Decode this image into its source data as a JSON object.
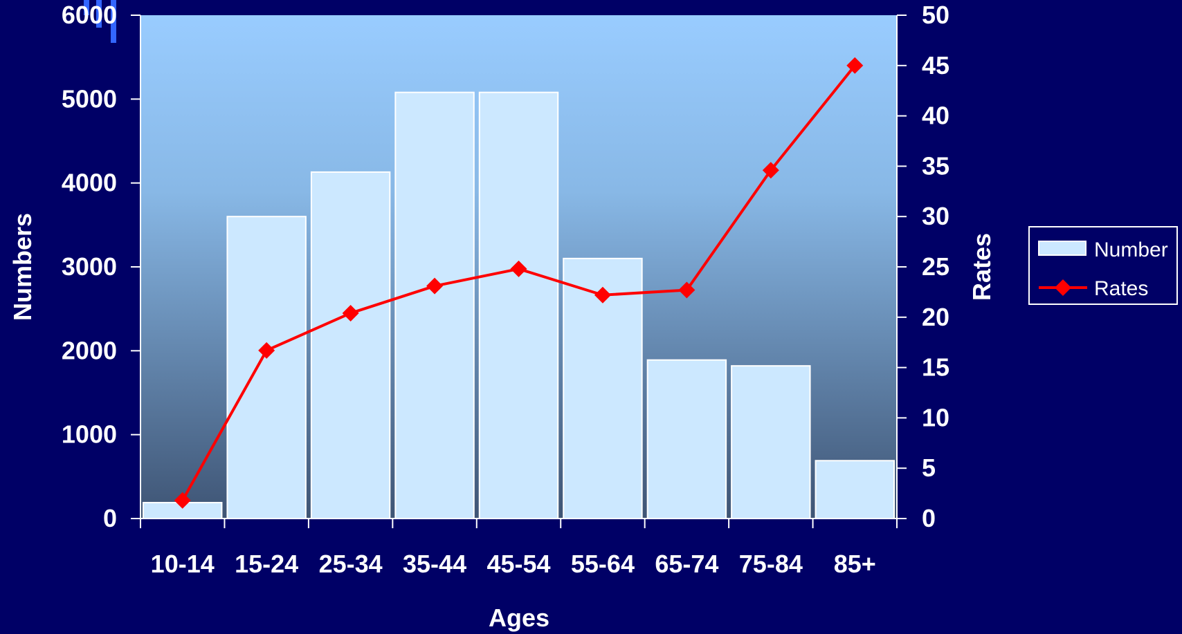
{
  "chart_data": {
    "type": "bar",
    "categories": [
      "10-14",
      "15-24",
      "25-34",
      "35-44",
      "45-54",
      "55-64",
      "65-74",
      "75-84",
      "85+"
    ],
    "series": [
      {
        "name": "Number",
        "type": "bar",
        "axis": "left",
        "values": [
          190,
          3600,
          4130,
          5080,
          5080,
          3100,
          1890,
          1820,
          690
        ]
      },
      {
        "name": "Rates",
        "type": "line",
        "axis": "right",
        "values": [
          1.8,
          16.7,
          20.4,
          23.1,
          24.8,
          22.2,
          22.7,
          34.6,
          45.0
        ]
      }
    ],
    "xlabel": "Ages",
    "ylabel": "Numbers",
    "y2label": "Rates",
    "ylim": [
      0,
      6000
    ],
    "y2lim": [
      0,
      50
    ],
    "yticks": [
      "0",
      "1000",
      "2000",
      "3000",
      "4000",
      "5000",
      "6000"
    ],
    "y2ticks": [
      "0",
      "5",
      "10",
      "15",
      "20",
      "25",
      "30",
      "35",
      "40",
      "45",
      "50"
    ],
    "legend_position": "right",
    "grid": false,
    "colors": {
      "background": "#000066",
      "plot_top": "#99ccff",
      "plot_bottom": "#3e5474",
      "bar_fill": "#cce8ff",
      "bar_stroke": "#ffffff",
      "line": "#ff0000",
      "text": "#ffffff"
    }
  }
}
